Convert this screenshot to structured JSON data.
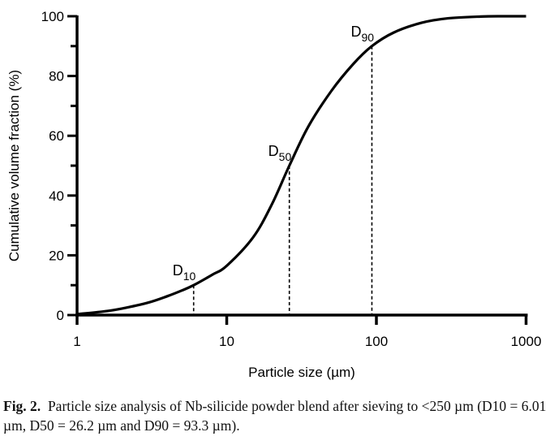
{
  "chart_data": {
    "type": "line",
    "title": "",
    "xlabel": "Particle size (µm)",
    "ylabel": "Cumulative volume fraction (%)",
    "xscale": "log",
    "xlim": [
      1,
      1000
    ],
    "ylim": [
      0,
      100
    ],
    "grid": false,
    "x_ticks": [
      1,
      10,
      100,
      1000
    ],
    "x_tick_labels": [
      "1",
      "10",
      "100",
      "1000"
    ],
    "y_ticks": [
      0,
      20,
      40,
      60,
      80,
      100
    ],
    "y_tick_labels": [
      "0",
      "20",
      "40",
      "60",
      "80",
      "100"
    ],
    "series": [
      {
        "name": "Cumulative volume fraction",
        "x": [
          1,
          1.5,
          2,
          3,
          4,
          5,
          6.01,
          8,
          10,
          15,
          20,
          26.2,
          35,
          50,
          70,
          93.3,
          130,
          200,
          300,
          500,
          700,
          1000
        ],
        "y": [
          0.3,
          1.2,
          2.2,
          4.2,
          6.3,
          8.2,
          10,
          13.5,
          16.5,
          26,
          37,
          50,
          63,
          75,
          84,
          90,
          94.5,
          97.8,
          99.3,
          99.9,
          100,
          100
        ]
      }
    ],
    "annotations": [
      {
        "label": "D",
        "sub": "10",
        "x": 6.01,
        "y": 10
      },
      {
        "label": "D",
        "sub": "50",
        "x": 26.2,
        "y": 50
      },
      {
        "label": "D",
        "sub": "90",
        "x": 93.3,
        "y": 90
      }
    ]
  },
  "caption": {
    "fig_label": "Fig. 2.",
    "text": "Particle size analysis of Nb-silicide powder blend after sieving to <250 µm (D10 = 6.01 µm, D50 = 26.2 µm and D90 = 93.3 µm)."
  }
}
